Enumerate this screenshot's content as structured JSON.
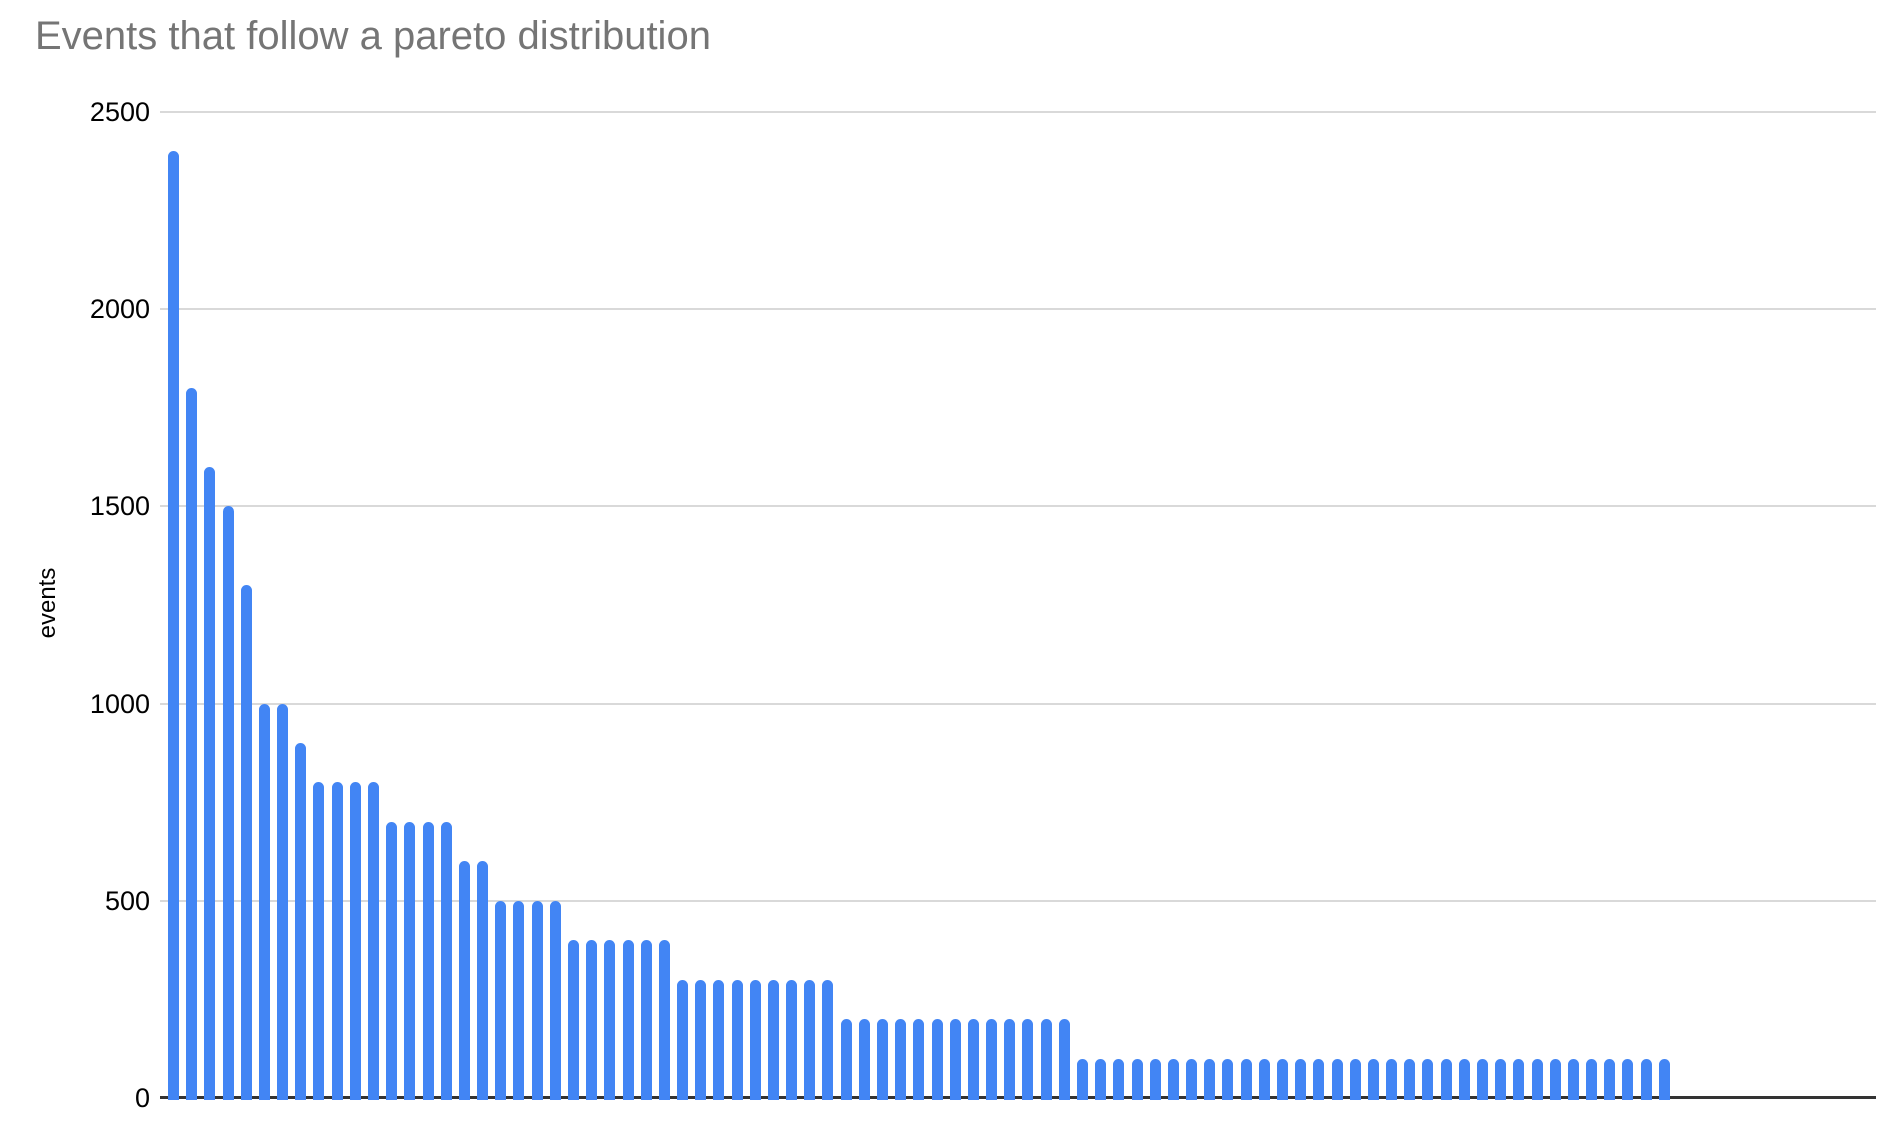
{
  "chart_data": {
    "type": "bar",
    "title": "Events that follow a pareto distribution",
    "xlabel": "",
    "ylabel": "events",
    "ylim": [
      0,
      2500
    ],
    "yticks": [
      0,
      500,
      1000,
      1500,
      2000,
      2500
    ],
    "x_tick_labels": "none",
    "legend_position": "none",
    "grid": "horizontal",
    "values": [
      2400,
      1800,
      1600,
      1500,
      1300,
      1000,
      1000,
      900,
      800,
      800,
      800,
      800,
      700,
      700,
      700,
      700,
      600,
      600,
      500,
      500,
      500,
      500,
      400,
      400,
      400,
      400,
      400,
      400,
      300,
      300,
      300,
      300,
      300,
      300,
      300,
      300,
      300,
      200,
      200,
      200,
      200,
      200,
      200,
      200,
      200,
      200,
      200,
      200,
      200,
      200,
      100,
      100,
      100,
      100,
      100,
      100,
      100,
      100,
      100,
      100,
      100,
      100,
      100,
      100,
      100,
      100,
      100,
      100,
      100,
      100,
      100,
      100,
      100,
      100,
      100,
      100,
      100,
      100,
      100,
      100,
      100,
      100,
      100
    ]
  },
  "colors": {
    "bar": "#4285f4",
    "gridline": "#d9d9d9",
    "axis_line": "#333333",
    "title_text": "#757575",
    "tick_text": "#000000"
  }
}
